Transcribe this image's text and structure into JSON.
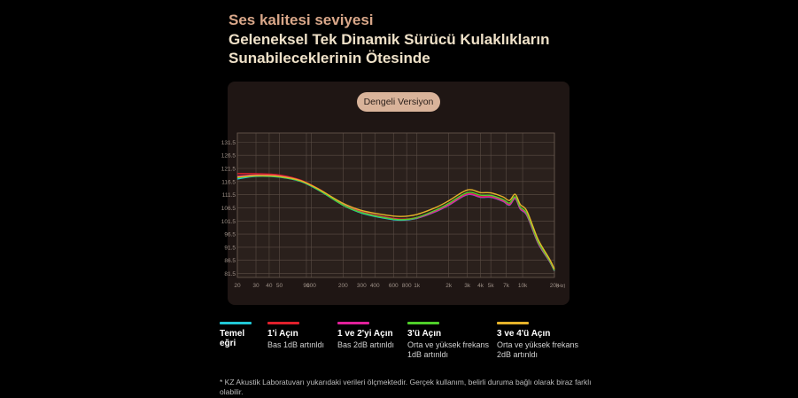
{
  "headline": {
    "line1": "Ses kalitesi seviyesi",
    "line2": "Geleneksel Tek Dinamik Sürücü Kulaklıkların",
    "line3": "Sunabileceklerinin Ötesinde"
  },
  "version_label": "Dengeli Versiyon",
  "legend": [
    {
      "title": "Temel eğri",
      "desc": "",
      "color": "#21c7d6"
    },
    {
      "title": "1'i Açın",
      "desc": "Bas 1dB artınldı",
      "color": "#e0202c"
    },
    {
      "title": "1 ve 2'yi Açın",
      "desc": "Bas 2dB artınldı",
      "color": "#e0209a"
    },
    {
      "title": "3'ü Açın",
      "desc": "Orta ve yüksek frekans 1dB artınldı",
      "color": "#4fcf2a"
    },
    {
      "title": "3 ve 4'ü Açın",
      "desc": "Orta ve yüksek frekans 2dB artınldı",
      "color": "#e5b22a"
    }
  ],
  "footnote": "* KZ Akustik Laboratuvarı yukarıdaki verileri ölçmektedir. Gerçek kullanım, belirli duruma bağlı olarak biraz farklı olabilir.",
  "chart_data": {
    "type": "line",
    "x_scale": "log",
    "xlim": [
      20,
      20000
    ],
    "ylim": [
      80,
      135
    ],
    "grid": true,
    "x_ticks": [
      {
        "v": 20,
        "label": "20"
      },
      {
        "v": 30,
        "label": "30"
      },
      {
        "v": 40,
        "label": "40"
      },
      {
        "v": 50,
        "label": "50"
      },
      {
        "v": 90,
        "label": "90"
      },
      {
        "v": 100,
        "label": "100"
      },
      {
        "v": 200,
        "label": "200"
      },
      {
        "v": 300,
        "label": "300"
      },
      {
        "v": 400,
        "label": "400"
      },
      {
        "v": 600,
        "label": "600"
      },
      {
        "v": 800,
        "label": "800"
      },
      {
        "v": 1000,
        "label": "1k"
      },
      {
        "v": 2000,
        "label": "2k"
      },
      {
        "v": 3000,
        "label": "3k"
      },
      {
        "v": 4000,
        "label": "4k"
      },
      {
        "v": 5000,
        "label": "5k"
      },
      {
        "v": 7000,
        "label": "7k"
      },
      {
        "v": 10000,
        "label": "10k"
      },
      {
        "v": 20000,
        "label": "20k"
      }
    ],
    "x_unit": "(Hz)",
    "y_ticks": [
      81.5,
      86.5,
      91.5,
      96.5,
      101.5,
      106.5,
      111.5,
      116.5,
      121.5,
      126.5,
      131.5
    ],
    "series": [
      {
        "name": "Temel eğri",
        "color": "#21c7d6",
        "points": [
          [
            20,
            117.5
          ],
          [
            30,
            118.5
          ],
          [
            50,
            118.2
          ],
          [
            80,
            116.5
          ],
          [
            120,
            113
          ],
          [
            200,
            107.5
          ],
          [
            300,
            104.5
          ],
          [
            500,
            102.5
          ],
          [
            700,
            101.8
          ],
          [
            1000,
            102.5
          ],
          [
            1500,
            105
          ],
          [
            2000,
            107.5
          ],
          [
            3000,
            111.5
          ],
          [
            4000,
            110.5
          ],
          [
            5000,
            110.5
          ],
          [
            6500,
            109
          ],
          [
            7500,
            107.5
          ],
          [
            8500,
            110
          ],
          [
            9500,
            106
          ],
          [
            11000,
            103.5
          ],
          [
            14000,
            93
          ],
          [
            18000,
            86
          ],
          [
            20000,
            82.5
          ]
        ]
      },
      {
        "name": "1'i Açın",
        "color": "#e0202c",
        "points": [
          [
            20,
            119.5
          ],
          [
            30,
            119.5
          ],
          [
            50,
            119
          ],
          [
            80,
            117
          ],
          [
            120,
            113.5
          ],
          [
            200,
            108
          ],
          [
            300,
            105
          ],
          [
            500,
            103
          ],
          [
            700,
            102.2
          ],
          [
            1000,
            102.8
          ],
          [
            1500,
            105.3
          ],
          [
            2000,
            107.8
          ],
          [
            3000,
            111.8
          ],
          [
            4000,
            110.8
          ],
          [
            5000,
            110.8
          ],
          [
            6500,
            109.3
          ],
          [
            7500,
            107.8
          ],
          [
            8500,
            110.3
          ],
          [
            9500,
            106.3
          ],
          [
            11000,
            103.8
          ],
          [
            14000,
            93.3
          ],
          [
            18000,
            86.3
          ],
          [
            20000,
            82.8
          ]
        ]
      },
      {
        "name": "1 ve 2'yi Açın",
        "color": "#e0209a",
        "points": [
          [
            20,
            118.5
          ],
          [
            30,
            119
          ],
          [
            50,
            118.6
          ],
          [
            80,
            116.8
          ],
          [
            120,
            113.2
          ],
          [
            200,
            107.8
          ],
          [
            300,
            104.8
          ],
          [
            500,
            102.8
          ],
          [
            700,
            102
          ],
          [
            1000,
            102.6
          ],
          [
            1500,
            105.1
          ],
          [
            2000,
            107.6
          ],
          [
            3000,
            111.6
          ],
          [
            4000,
            110.6
          ],
          [
            5000,
            110.6
          ],
          [
            6500,
            109.1
          ],
          [
            7500,
            107.6
          ],
          [
            8500,
            110.1
          ],
          [
            9500,
            106.1
          ],
          [
            11000,
            103.6
          ],
          [
            14000,
            93.1
          ],
          [
            18000,
            86.1
          ],
          [
            20000,
            82.6
          ]
        ]
      },
      {
        "name": "3'ü Açın",
        "color": "#4fcf2a",
        "points": [
          [
            20,
            118
          ],
          [
            30,
            118.6
          ],
          [
            50,
            118.3
          ],
          [
            80,
            116.6
          ],
          [
            120,
            113.1
          ],
          [
            200,
            107.6
          ],
          [
            300,
            104.7
          ],
          [
            500,
            102.7
          ],
          [
            700,
            102
          ],
          [
            1000,
            102.8
          ],
          [
            1500,
            105.6
          ],
          [
            2000,
            108.2
          ],
          [
            3000,
            112.3
          ],
          [
            4000,
            111.3
          ],
          [
            5000,
            111.2
          ],
          [
            6500,
            109.7
          ],
          [
            7500,
            108.3
          ],
          [
            8500,
            110.7
          ],
          [
            9500,
            106.8
          ],
          [
            11000,
            104.2
          ],
          [
            14000,
            93.6
          ],
          [
            18000,
            86.4
          ],
          [
            20000,
            82.7
          ]
        ]
      },
      {
        "name": "3 ve 4'ü Açın",
        "color": "#e5b22a",
        "points": [
          [
            20,
            118.2
          ],
          [
            30,
            118.8
          ],
          [
            50,
            118.5
          ],
          [
            80,
            116.8
          ],
          [
            120,
            113.4
          ],
          [
            200,
            108.2
          ],
          [
            300,
            105.5
          ],
          [
            500,
            103.8
          ],
          [
            700,
            103.2
          ],
          [
            1000,
            104
          ],
          [
            1500,
            106.6
          ],
          [
            2000,
            109.2
          ],
          [
            3000,
            113.3
          ],
          [
            4000,
            112.3
          ],
          [
            5000,
            112.2
          ],
          [
            6500,
            110.7
          ],
          [
            7500,
            109.3
          ],
          [
            8500,
            111.7
          ],
          [
            9500,
            107.8
          ],
          [
            11000,
            105.2
          ],
          [
            14000,
            94.5
          ],
          [
            18000,
            87
          ],
          [
            20000,
            83.2
          ]
        ]
      }
    ]
  }
}
